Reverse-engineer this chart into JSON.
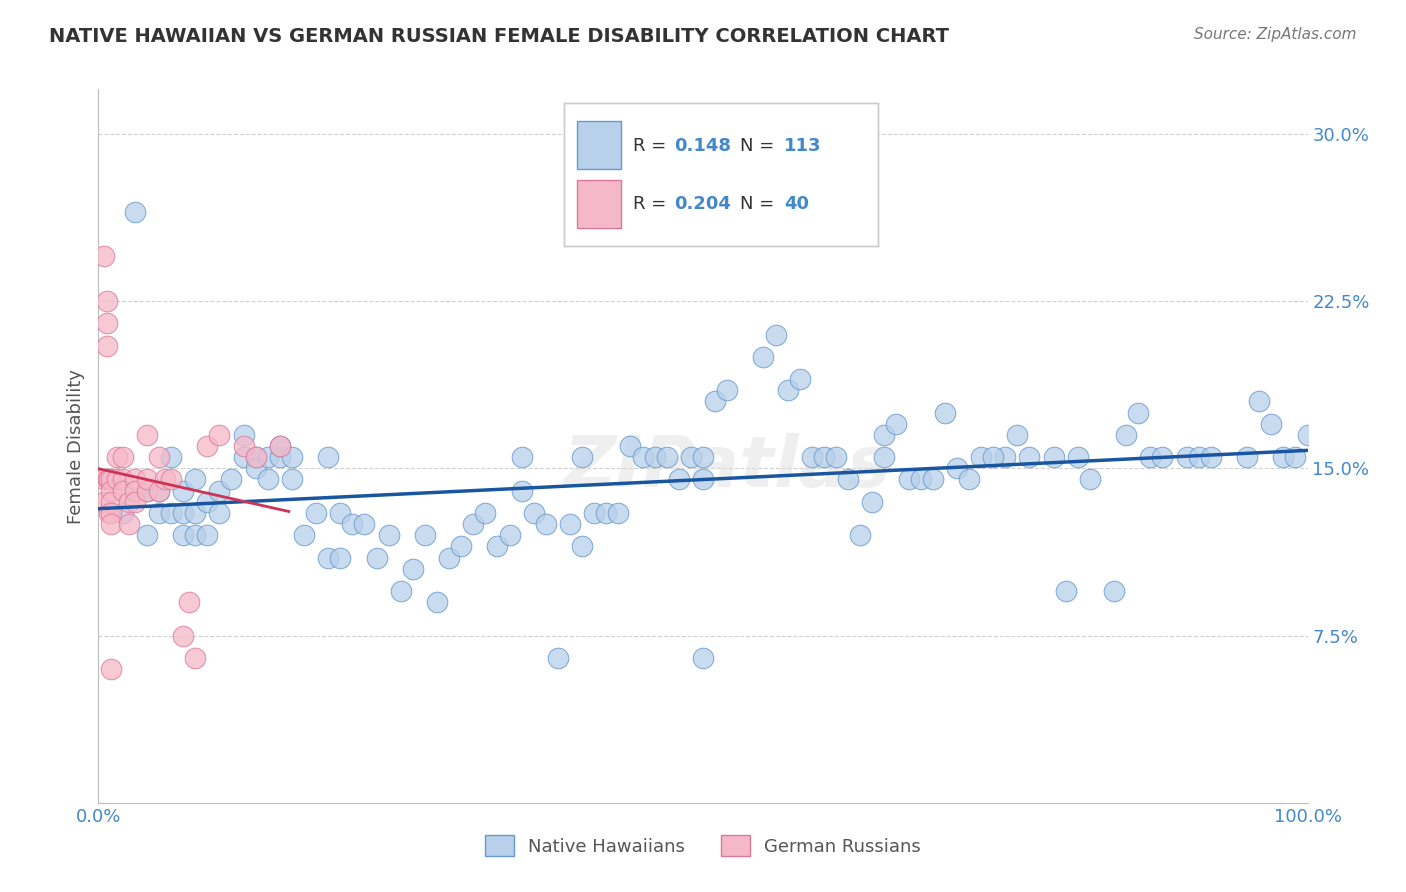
{
  "title": "NATIVE HAWAIIAN VS GERMAN RUSSIAN FEMALE DISABILITY CORRELATION CHART",
  "source": "Source: ZipAtlas.com",
  "ylabel": "Female Disability",
  "xlim": [
    0.0,
    1.0
  ],
  "ylim": [
    0.0,
    0.32
  ],
  "yticks": [
    0.075,
    0.15,
    0.225,
    0.3
  ],
  "ytick_labels": [
    "7.5%",
    "15.0%",
    "22.5%",
    "30.0%"
  ],
  "xticks": [
    0.0,
    0.25,
    0.5,
    0.75,
    1.0
  ],
  "xtick_labels": [
    "0.0%",
    "",
    "",
    "",
    "100.0%"
  ],
  "blue_R": 0.148,
  "blue_N": 113,
  "pink_R": 0.204,
  "pink_N": 40,
  "blue_face_color": "#b8d0ea",
  "blue_edge_color": "#6699cc",
  "pink_face_color": "#f5b8c8",
  "pink_edge_color": "#dd7799",
  "blue_line_color": "#1a56a0",
  "pink_line_color": "#cc3355",
  "legend_label_blue": "Native Hawaiians",
  "legend_label_pink": "German Russians",
  "title_color": "#333333",
  "axis_tick_color": "#4488cc",
  "watermark": "ZIPatlas",
  "grid_color": "#cccccc",
  "blue_x": [
    0.02,
    0.04,
    0.04,
    0.05,
    0.05,
    0.06,
    0.06,
    0.07,
    0.07,
    0.07,
    0.08,
    0.08,
    0.08,
    0.09,
    0.09,
    0.1,
    0.1,
    0.11,
    0.12,
    0.12,
    0.13,
    0.13,
    0.14,
    0.14,
    0.15,
    0.15,
    0.16,
    0.16,
    0.17,
    0.18,
    0.19,
    0.19,
    0.2,
    0.2,
    0.21,
    0.22,
    0.23,
    0.24,
    0.25,
    0.26,
    0.27,
    0.28,
    0.29,
    0.3,
    0.31,
    0.32,
    0.33,
    0.34,
    0.35,
    0.36,
    0.37,
    0.38,
    0.39,
    0.4,
    0.41,
    0.42,
    0.43,
    0.44,
    0.45,
    0.46,
    0.47,
    0.48,
    0.49,
    0.5,
    0.51,
    0.52,
    0.55,
    0.56,
    0.57,
    0.58,
    0.59,
    0.6,
    0.61,
    0.62,
    0.63,
    0.64,
    0.65,
    0.66,
    0.67,
    0.7,
    0.71,
    0.72,
    0.75,
    0.76,
    0.8,
    0.81,
    0.82,
    0.85,
    0.86,
    0.87,
    0.88,
    0.9,
    0.91,
    0.92,
    0.95,
    0.96,
    0.97,
    0.98,
    0.99,
    1.0,
    0.03,
    0.35,
    0.4,
    0.5,
    0.5,
    0.65,
    0.68,
    0.69,
    0.73,
    0.74,
    0.77,
    0.79,
    0.84
  ],
  "blue_y": [
    0.13,
    0.14,
    0.12,
    0.14,
    0.13,
    0.155,
    0.13,
    0.13,
    0.12,
    0.14,
    0.13,
    0.12,
    0.145,
    0.12,
    0.135,
    0.13,
    0.14,
    0.145,
    0.155,
    0.165,
    0.155,
    0.15,
    0.155,
    0.145,
    0.155,
    0.16,
    0.145,
    0.155,
    0.12,
    0.13,
    0.11,
    0.155,
    0.11,
    0.13,
    0.125,
    0.125,
    0.11,
    0.12,
    0.095,
    0.105,
    0.12,
    0.09,
    0.11,
    0.115,
    0.125,
    0.13,
    0.115,
    0.12,
    0.14,
    0.13,
    0.125,
    0.065,
    0.125,
    0.115,
    0.13,
    0.13,
    0.13,
    0.16,
    0.155,
    0.155,
    0.155,
    0.145,
    0.155,
    0.145,
    0.18,
    0.185,
    0.2,
    0.21,
    0.185,
    0.19,
    0.155,
    0.155,
    0.155,
    0.145,
    0.12,
    0.135,
    0.165,
    0.17,
    0.145,
    0.175,
    0.15,
    0.145,
    0.155,
    0.165,
    0.095,
    0.155,
    0.145,
    0.165,
    0.175,
    0.155,
    0.155,
    0.155,
    0.155,
    0.155,
    0.155,
    0.18,
    0.17,
    0.155,
    0.155,
    0.165,
    0.265,
    0.155,
    0.155,
    0.065,
    0.155,
    0.155,
    0.145,
    0.145,
    0.155,
    0.155,
    0.155,
    0.155,
    0.095
  ],
  "pink_x": [
    0.005,
    0.005,
    0.005,
    0.007,
    0.007,
    0.007,
    0.008,
    0.009,
    0.009,
    0.01,
    0.01,
    0.01,
    0.01,
    0.01,
    0.01,
    0.015,
    0.015,
    0.02,
    0.02,
    0.02,
    0.025,
    0.025,
    0.03,
    0.03,
    0.03,
    0.04,
    0.04,
    0.04,
    0.05,
    0.05,
    0.055,
    0.06,
    0.07,
    0.075,
    0.08,
    0.09,
    0.1,
    0.12,
    0.13,
    0.15
  ],
  "pink_y": [
    0.145,
    0.135,
    0.245,
    0.225,
    0.215,
    0.205,
    0.145,
    0.145,
    0.13,
    0.145,
    0.14,
    0.135,
    0.13,
    0.125,
    0.06,
    0.155,
    0.145,
    0.155,
    0.145,
    0.14,
    0.135,
    0.125,
    0.145,
    0.14,
    0.135,
    0.14,
    0.145,
    0.165,
    0.155,
    0.14,
    0.145,
    0.145,
    0.075,
    0.09,
    0.065,
    0.16,
    0.165,
    0.16,
    0.155,
    0.16
  ]
}
